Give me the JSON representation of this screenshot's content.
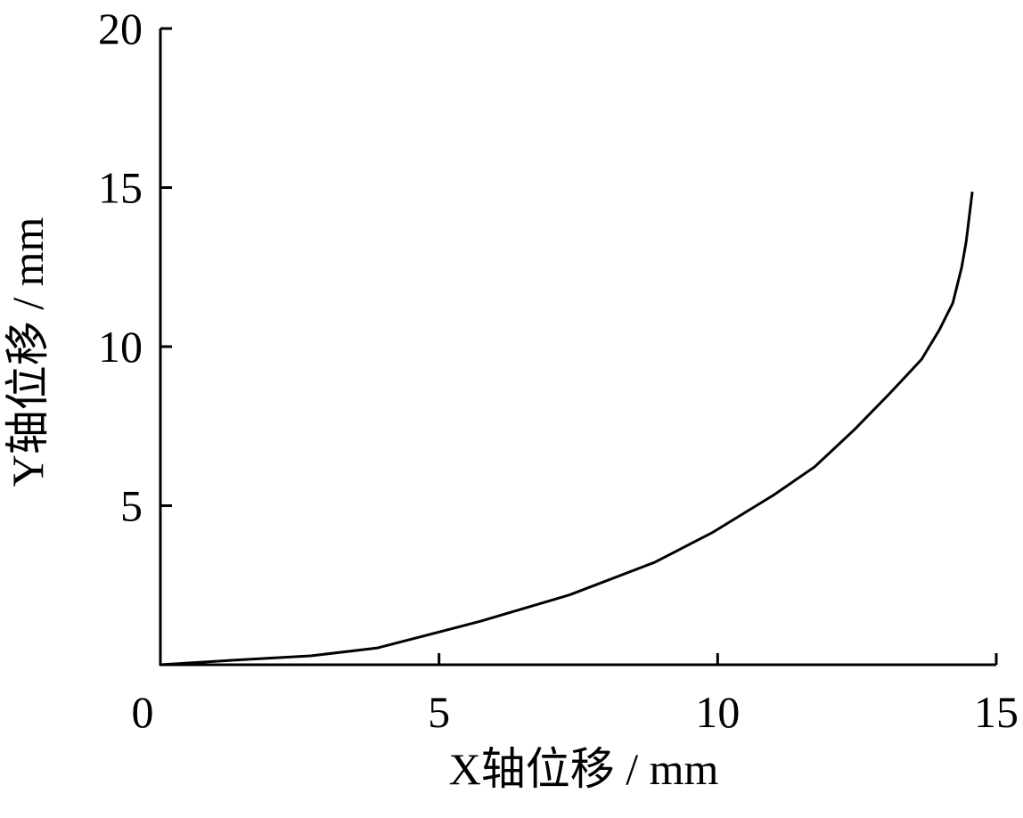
{
  "chart_data": {
    "type": "line",
    "x_label": "X轴位移 / mm",
    "y_label": "Y轴位移 / mm",
    "x": [
      0,
      1.28,
      2.7,
      3.9,
      5.75,
      7.35,
      8.87,
      9.9,
      11.0,
      11.74,
      12.46,
      13.1,
      13.66,
      13.98,
      14.22,
      14.38,
      14.46,
      14.57
    ],
    "y": [
      0,
      0.14,
      0.28,
      0.53,
      1.37,
      2.2,
      3.22,
      4.15,
      5.33,
      6.22,
      7.4,
      8.55,
      9.6,
      10.53,
      11.37,
      12.5,
      13.3,
      14.87
    ],
    "color": "#000000",
    "xlim": [
      0,
      15
    ],
    "xticks": [
      0,
      5,
      10,
      15
    ],
    "ylim": [
      0,
      20
    ],
    "yticks": [
      5,
      10,
      15,
      20
    ]
  }
}
